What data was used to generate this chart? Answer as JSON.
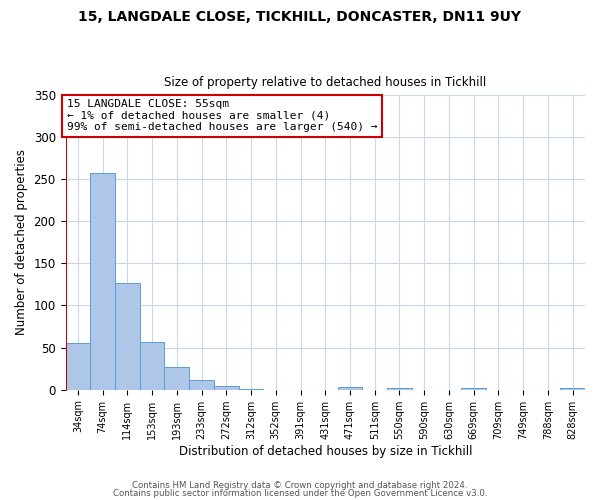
{
  "title1": "15, LANGDALE CLOSE, TICKHILL, DONCASTER, DN11 9UY",
  "title2": "Size of property relative to detached houses in Tickhill",
  "xlabel": "Distribution of detached houses by size in Tickhill",
  "ylabel": "Number of detached properties",
  "bar_labels": [
    "34sqm",
    "74sqm",
    "114sqm",
    "153sqm",
    "193sqm",
    "233sqm",
    "272sqm",
    "312sqm",
    "352sqm",
    "391sqm",
    "431sqm",
    "471sqm",
    "511sqm",
    "550sqm",
    "590sqm",
    "630sqm",
    "669sqm",
    "709sqm",
    "749sqm",
    "788sqm",
    "828sqm"
  ],
  "bar_values": [
    55,
    257,
    127,
    57,
    27,
    12,
    5,
    1,
    0,
    0,
    0,
    3,
    0,
    2,
    0,
    0,
    2,
    0,
    0,
    0,
    2
  ],
  "bar_color": "#aec6e8",
  "bar_edge_color": "#5b9bd5",
  "annotation_line1": "15 LANGDALE CLOSE: 55sqm",
  "annotation_line2": "← 1% of detached houses are smaller (4)",
  "annotation_line3": "99% of semi-detached houses are larger (540) →",
  "annotation_box_edge": "#cc0000",
  "vline_x": -0.5,
  "ylim": [
    0,
    350
  ],
  "yticks": [
    0,
    50,
    100,
    150,
    200,
    250,
    300,
    350
  ],
  "footer1": "Contains HM Land Registry data © Crown copyright and database right 2024.",
  "footer2": "Contains public sector information licensed under the Open Government Licence v3.0.",
  "background_color": "#ffffff",
  "grid_color": "#c8d8ea"
}
